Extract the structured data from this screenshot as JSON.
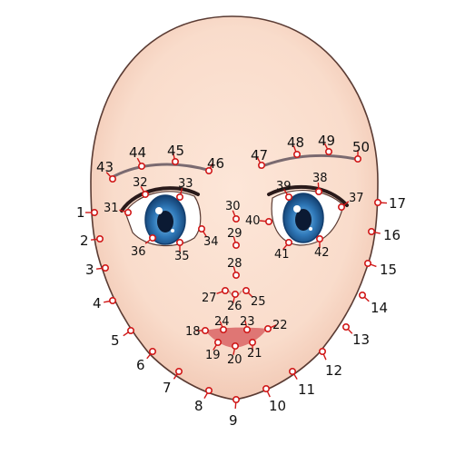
{
  "colors": {
    "skin": "#f9dccb",
    "skin_shadow": "#e8b9a6",
    "outline": "#5a3b33",
    "brow": "#7a6a70",
    "iris": "#2f78b8",
    "iris_dark": "#123e6e",
    "pupil": "#0b1a33",
    "lips": "#dc6a6a",
    "marker": "#d01818",
    "label": "#111111"
  },
  "landmarks": [
    {
      "label": "1"
    },
    {
      "label": "2"
    },
    {
      "label": "3"
    },
    {
      "label": "4"
    },
    {
      "label": "5"
    },
    {
      "label": "6"
    },
    {
      "label": "7"
    },
    {
      "label": "8"
    },
    {
      "label": "9"
    },
    {
      "label": "10"
    },
    {
      "label": "11"
    },
    {
      "label": "12"
    },
    {
      "label": "13"
    },
    {
      "label": "14"
    },
    {
      "label": "15"
    },
    {
      "label": "16"
    },
    {
      "label": "17"
    },
    {
      "label": "18"
    },
    {
      "label": "19"
    },
    {
      "label": "20"
    },
    {
      "label": "21"
    },
    {
      "label": "22"
    },
    {
      "label": "23"
    },
    {
      "label": "24"
    },
    {
      "label": "25"
    },
    {
      "label": "26"
    },
    {
      "label": "27"
    },
    {
      "label": "28"
    },
    {
      "label": "29"
    },
    {
      "label": "30"
    },
    {
      "label": "31"
    },
    {
      "label": "32"
    },
    {
      "label": "33"
    },
    {
      "label": "34"
    },
    {
      "label": "35"
    },
    {
      "label": "36"
    },
    {
      "label": "37"
    },
    {
      "label": "38"
    },
    {
      "label": "39"
    },
    {
      "label": "40"
    },
    {
      "label": "41"
    },
    {
      "label": "42"
    },
    {
      "label": "43"
    },
    {
      "label": "44"
    },
    {
      "label": "45"
    },
    {
      "label": "46"
    },
    {
      "label": "47"
    },
    {
      "label": "48"
    },
    {
      "label": "49"
    },
    {
      "label": "50"
    }
  ]
}
